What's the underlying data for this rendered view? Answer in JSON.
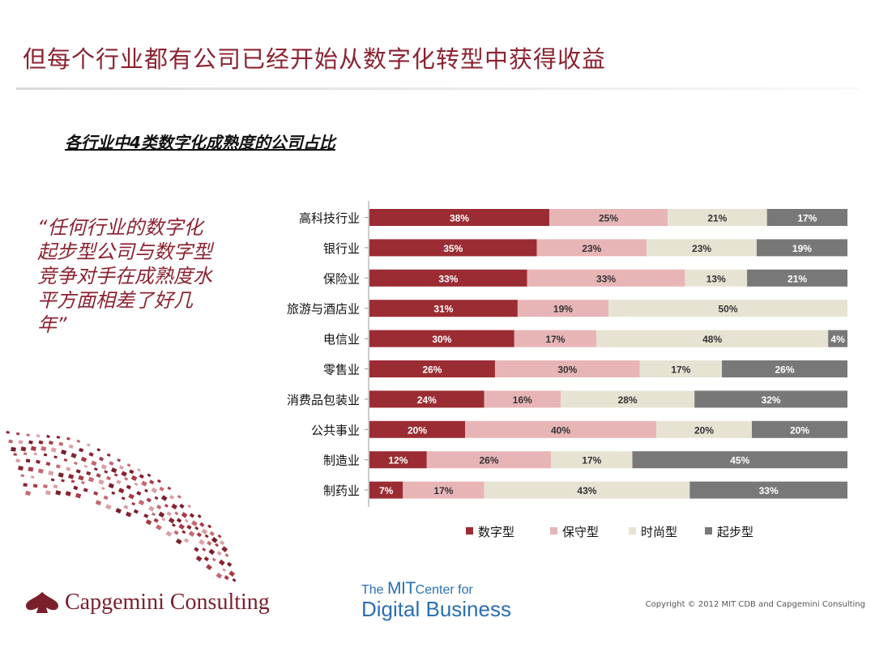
{
  "title": "但每个行业都有公司已经开始从数字化转型中获得收益",
  "subtitle": "各行业中4类数字化成熟度的公司占比",
  "quote": "“任何行业的数字化起步型公司与数字型竞争对手在成熟度水平方面相差了好几年”",
  "chart_data": {
    "type": "bar",
    "orientation": "horizontal",
    "stacked": true,
    "categories": [
      "高科技行业",
      "银行业",
      "保险业",
      "旅游与酒店业",
      "电信业",
      "零售业",
      "消费品包装业",
      "公共事业",
      "制造业",
      "制药业"
    ],
    "series": [
      {
        "name": "数字型",
        "color": "#9b2c33",
        "values": [
          38,
          35,
          33,
          31,
          30,
          26,
          24,
          20,
          12,
          7
        ]
      },
      {
        "name": "保守型",
        "color": "#e8b5b7",
        "values": [
          25,
          23,
          33,
          19,
          17,
          30,
          16,
          40,
          26,
          17
        ]
      },
      {
        "name": "时尚型",
        "color": "#e6e3d3",
        "values": [
          21,
          23,
          13,
          50,
          48,
          17,
          28,
          20,
          17,
          43
        ]
      },
      {
        "name": "起步型",
        "color": "#787878",
        "values": [
          17,
          19,
          21,
          0,
          4,
          26,
          32,
          20,
          45,
          33
        ]
      }
    ],
    "label_colors": [
      "#ffffff",
      "#333333",
      "#333333",
      "#ffffff"
    ],
    "legend": "bottom",
    "xlim": [
      0,
      100
    ]
  },
  "footer": {
    "capgemini": "Capgemini Consulting",
    "mit_the": "The ",
    "mit_mit": "MIT",
    "mit_center": "Center for",
    "mit_digital": "Digital Business",
    "copyright": "Copyright © 2012 MIT CDB and Capgemini Consulting"
  }
}
